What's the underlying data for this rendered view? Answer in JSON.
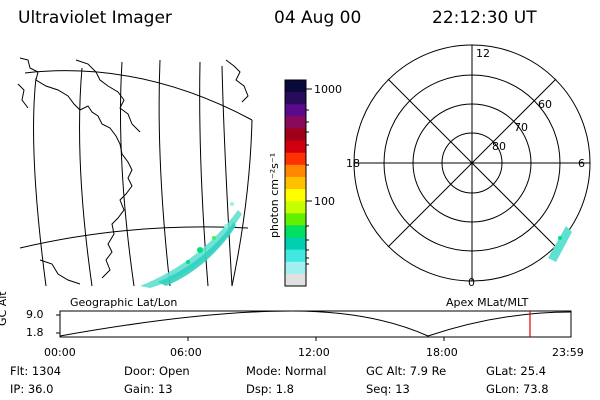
{
  "header": {
    "instrument": "Ultraviolet Imager",
    "date": "04 Aug 00",
    "time": "22:12:30 UT"
  },
  "colorbar": {
    "label": "photon cm⁻²s⁻¹",
    "ticks": [
      "1000",
      "100"
    ],
    "colors": [
      "#0a0a3a",
      "#2a0a5a",
      "#5a0a8a",
      "#8a0a5a",
      "#a0001a",
      "#d00010",
      "#ff3000",
      "#ff8800",
      "#ffc000",
      "#ffff00",
      "#c8ff00",
      "#60f000",
      "#00e060",
      "#00d0b0",
      "#40e8e0",
      "#a0f0f0",
      "#e0e0e0"
    ]
  },
  "geo_panel": {
    "label": "Geographic Lat/Lon"
  },
  "polar_panel": {
    "label": "Apex MLat/MLT",
    "mlt_labels": {
      "top": "12",
      "left": "18",
      "right": "6",
      "bottom": "0"
    },
    "lat_labels": [
      "60",
      "70",
      "80"
    ]
  },
  "timeline": {
    "axis_label": "GC Alt",
    "y_ticks": [
      "9.0",
      "1.8"
    ],
    "x_ticks": [
      "00:00",
      "06:00",
      "12:00",
      "18:00",
      "23:59"
    ],
    "current_marker_color": "#e00000"
  },
  "info": {
    "row1": [
      {
        "label": "Flt:",
        "value": "1304"
      },
      {
        "label": "Door:",
        "value": "Open"
      },
      {
        "label": "Mode:",
        "value": "Normal"
      },
      {
        "label": "GC Alt:",
        "value": "7.9 Re"
      },
      {
        "label": "GLat:",
        "value": "25.4"
      }
    ],
    "row2": [
      {
        "label": "IP:",
        "value": "36.0"
      },
      {
        "label": "Gain:",
        "value": "13"
      },
      {
        "label": "Dsp:",
        "value": "1.8"
      },
      {
        "label": "Seq:",
        "value": "13"
      },
      {
        "label": "GLon:",
        "value": "73.8"
      }
    ]
  }
}
